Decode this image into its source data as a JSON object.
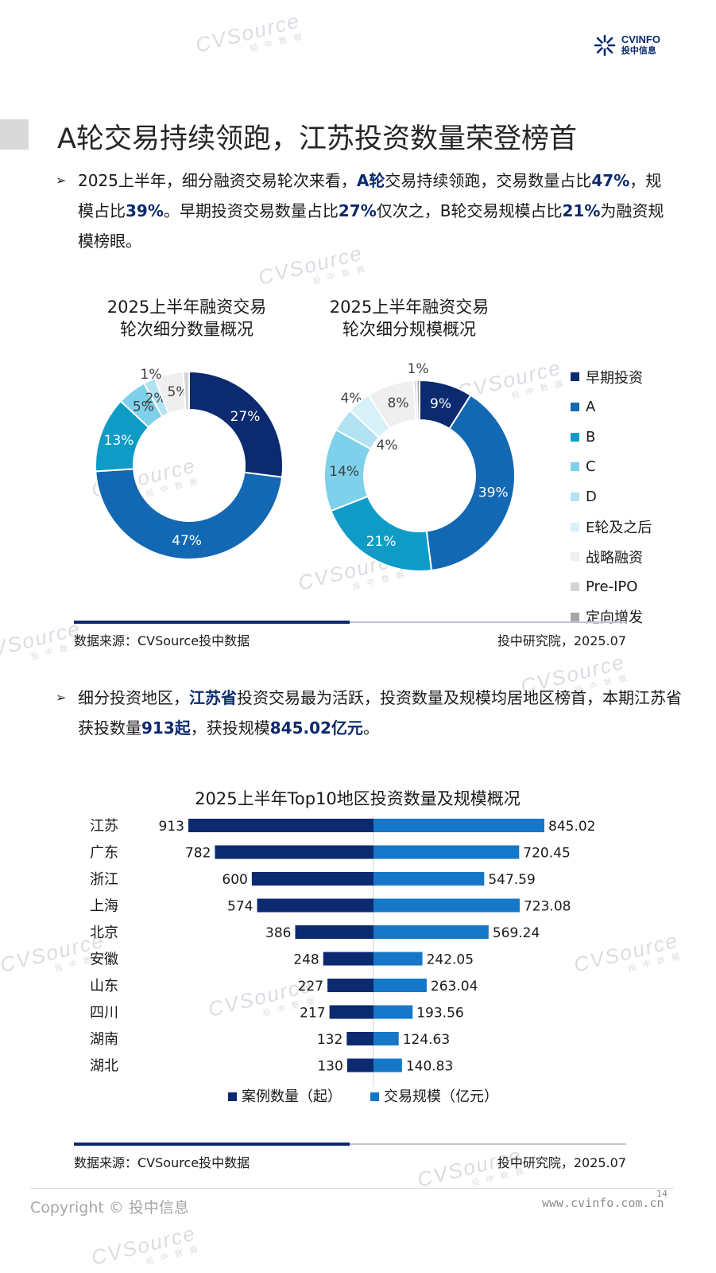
{
  "header": {
    "logo_top": "CVINFO",
    "logo_bottom": "投中信息"
  },
  "watermark": {
    "big": "CVSource",
    "small": "投 中 数 据"
  },
  "page_title": "A轮交易持续领跑，江苏投资数量荣登榜首",
  "bullet1": {
    "p1": "2025上半年，细分融资交易轮次来看，",
    "b1": "A轮",
    "p2": "交易持续领跑，交易数量占比",
    "b2": "47%",
    "p3": "，规模占比",
    "b3": "39%",
    "p4": "。早期投资交易数量占比",
    "b4": "27%",
    "p5": "仅次之，B轮交易规模占比",
    "b5": "21%",
    "p6": "为融资规模榜眼。"
  },
  "bullet2": {
    "p1": "细分投资地区，",
    "b1": "江苏省",
    "p2": "投资交易最为活跃，投资数量及规模均居地区榜首，本期江苏省获投数量",
    "b2": "913起",
    "p3": "，获投规模",
    "b3": "845.02亿元",
    "p4": "。"
  },
  "donut_titles": {
    "left": [
      "2025上半年融资交易",
      "轮次细分数量概况"
    ],
    "right": [
      "2025上半年融资交易",
      "轮次细分规模概况"
    ]
  },
  "legend": [
    {
      "label": "早期投资",
      "color": "#0b2a6f"
    },
    {
      "label": "A",
      "color": "#1268b3"
    },
    {
      "label": "B",
      "color": "#0e9cc7"
    },
    {
      "label": "C",
      "color": "#7fd0eb"
    },
    {
      "label": "D",
      "color": "#b3e2f3"
    },
    {
      "label": "E轮及之后",
      "color": "#d6f1f7"
    },
    {
      "label": "战略融资",
      "color": "#efefef"
    },
    {
      "label": "Pre-IPO",
      "color": "#d4d4d4"
    },
    {
      "label": "定向增发",
      "color": "#a6a6a6"
    }
  ],
  "chart_data": [
    {
      "type": "pie",
      "variant": "donut",
      "title": "2025上半年融资交易轮次细分数量概况",
      "categories": [
        "早期投资",
        "A",
        "B",
        "C",
        "D",
        "E轮及之后",
        "战略融资",
        "Pre-IPO",
        "定向增发"
      ],
      "values": [
        27,
        47,
        13,
        5,
        2,
        0,
        5,
        1,
        0
      ],
      "labels": [
        "27%",
        "47%",
        "13%",
        "5%",
        "2%",
        "",
        "5%",
        "1%",
        ""
      ]
    },
    {
      "type": "pie",
      "variant": "donut",
      "title": "2025上半年融资交易轮次细分规模概况",
      "categories": [
        "早期投资",
        "A",
        "B",
        "C",
        "D",
        "E轮及之后",
        "战略融资",
        "Pre-IPO",
        "定向增发"
      ],
      "values": [
        9,
        39,
        21,
        14,
        4,
        4,
        8,
        0.5,
        0.5
      ],
      "labels": [
        "9%",
        "39%",
        "21%",
        "14%",
        "4%",
        "4%",
        "8%",
        "1%",
        ""
      ]
    },
    {
      "type": "bar",
      "orientation": "horizontal-diverging",
      "title": "2025上半年Top10地区投资数量及规模概况",
      "categories": [
        "江苏",
        "广东",
        "浙江",
        "上海",
        "北京",
        "安徽",
        "山东",
        "四川",
        "湖南",
        "湖北"
      ],
      "series": [
        {
          "name": "案例数量（起）",
          "color": "#0b2a6f",
          "values": [
            913,
            782,
            600,
            574,
            386,
            248,
            227,
            217,
            132,
            130
          ]
        },
        {
          "name": "交易规模（亿元）",
          "color": "#1677c9",
          "values": [
            845.02,
            720.45,
            547.59,
            723.08,
            569.24,
            242.05,
            263.04,
            193.56,
            124.63,
            140.83
          ]
        }
      ],
      "value_labels_left": [
        "913",
        "782",
        "600",
        "574",
        "386",
        "248",
        "227",
        "217",
        "132",
        "130"
      ],
      "value_labels_right": [
        "845.02",
        "720.45",
        "547.59",
        "723.08",
        "569.24",
        "242.05",
        "263.04",
        "193.56",
        "124.63",
        "140.83"
      ]
    }
  ],
  "source1": {
    "left": "数据来源：CVSource投中数据",
    "right": "投中研究院，2025.07"
  },
  "source2": {
    "left": "数据来源：CVSource投中数据",
    "right": "投中研究院，2025.07"
  },
  "footer": {
    "copyright": "Copyright © 投中信息",
    "page": "14",
    "site": "www.cvinfo.com.cn"
  }
}
